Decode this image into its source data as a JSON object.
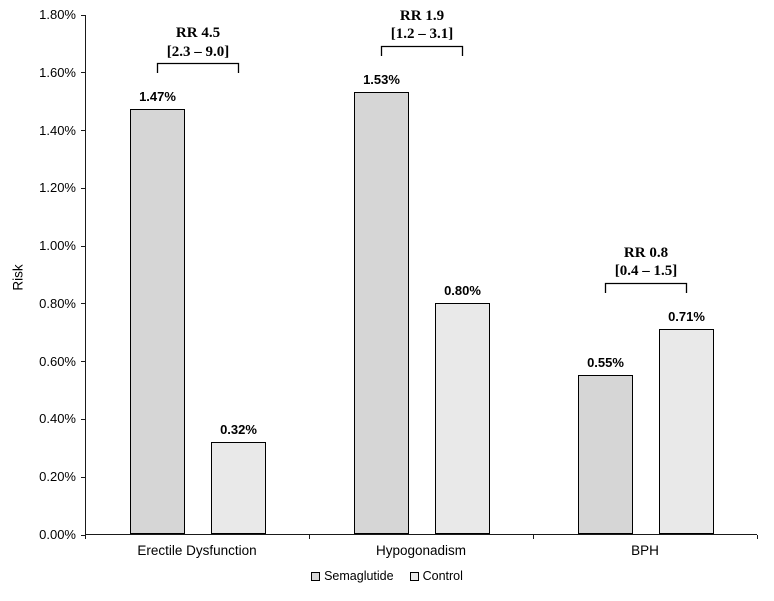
{
  "chart_data": {
    "type": "bar",
    "title": "",
    "xlabel": "",
    "ylabel": "Risk",
    "ylim": [
      0,
      1.8
    ],
    "ytick_step": 0.2,
    "ytick_labels": [
      "0.00%",
      "0.20%",
      "0.40%",
      "0.60%",
      "0.80%",
      "1.00%",
      "1.20%",
      "1.40%",
      "1.60%",
      "1.80%"
    ],
    "categories": [
      "Erectile Dysfunction",
      "Hypogonadism",
      "BPH"
    ],
    "series": [
      {
        "name": "Semaglutide",
        "color": "#d6d6d6",
        "values": [
          1.47,
          1.53,
          0.55
        ],
        "labels": [
          "1.47%",
          "1.53%",
          "0.55%"
        ]
      },
      {
        "name": "Control",
        "color": "#e9e9e9",
        "values": [
          0.32,
          0.8,
          0.71
        ],
        "labels": [
          "0.32%",
          "0.80%",
          "0.71%"
        ]
      }
    ],
    "annotations": [
      {
        "rr": "RR 4.5",
        "ci": "[2.3 – 9.0]"
      },
      {
        "rr": "RR 1.9",
        "ci": "[1.2 – 3.1]"
      },
      {
        "rr": "RR 0.8",
        "ci": "[0.4 – 1.5]"
      }
    ],
    "legend": [
      "Semaglutide",
      "Control"
    ],
    "legend_position": "bottom",
    "grid": false,
    "axis_color": "#1a1a1a",
    "bar_border_color": "#000000"
  }
}
